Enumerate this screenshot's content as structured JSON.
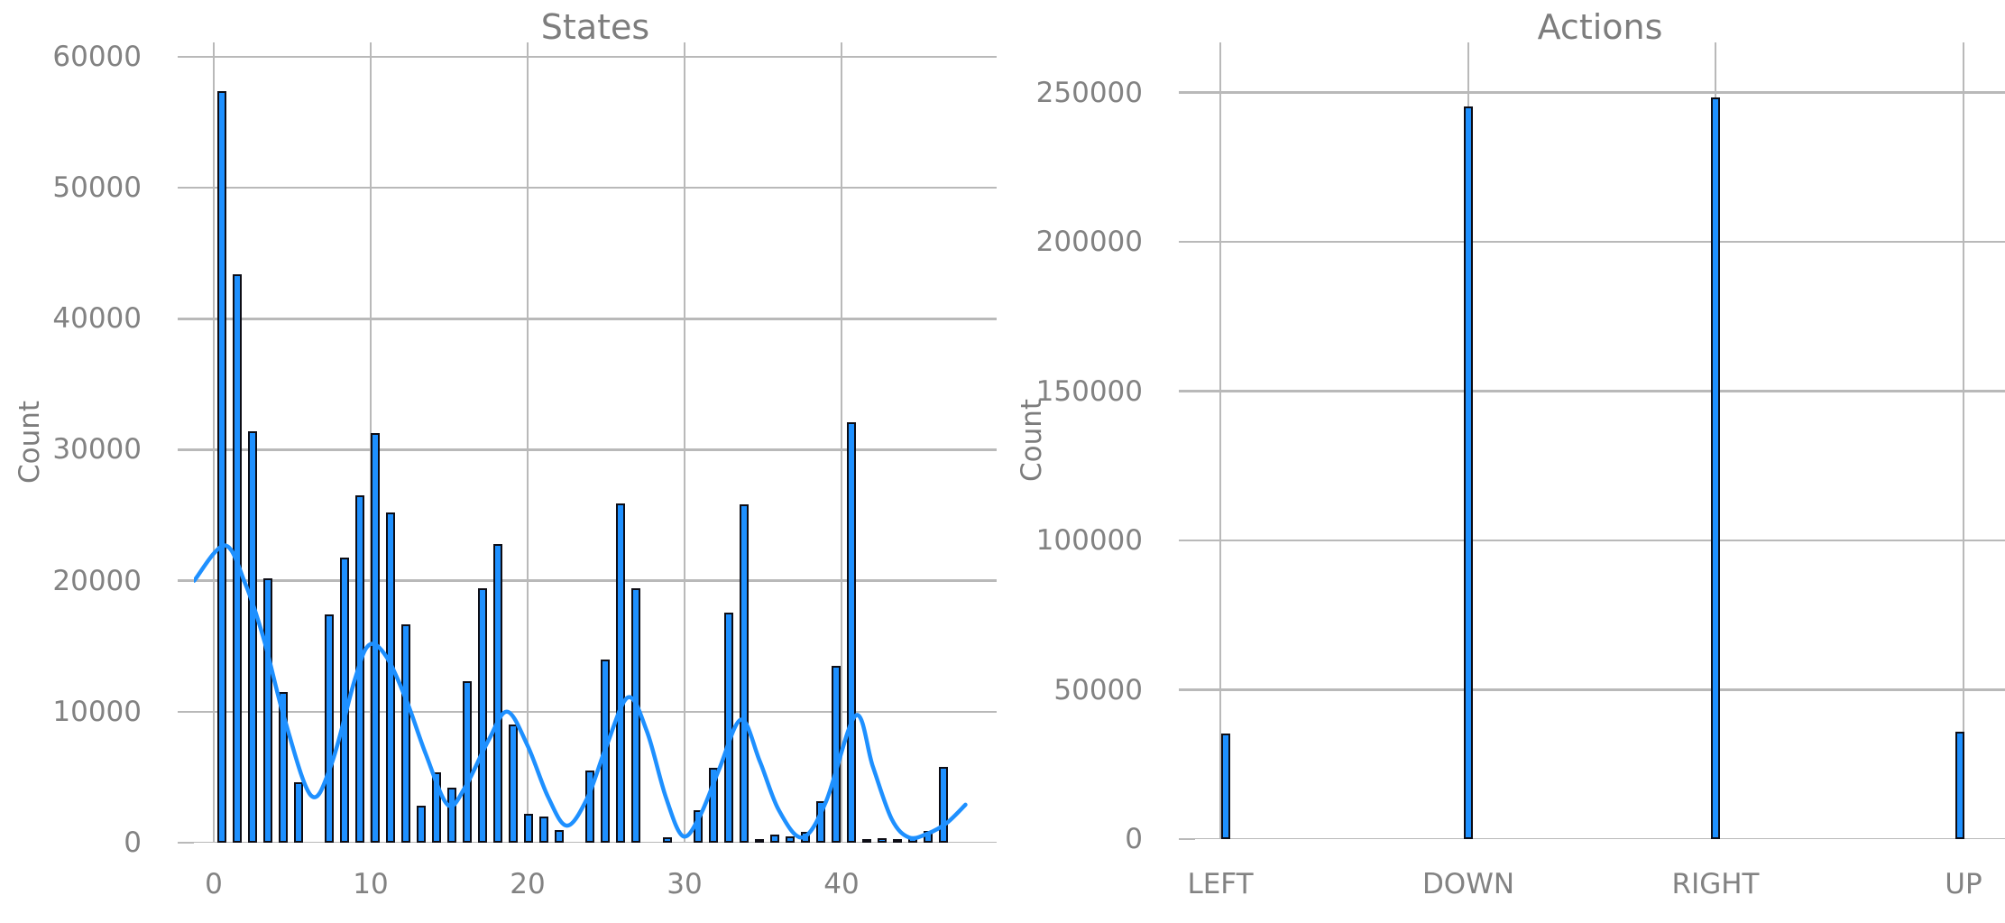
{
  "figure": {
    "background": "#ffffff",
    "bar_fill": "#1E90FF",
    "bar_edge": "#0d0d15",
    "kde_color": "#1E90FF",
    "grid_color": "#b9b9b9",
    "text_color": "#7d7d7d"
  },
  "chart_data": [
    {
      "type": "bar",
      "subtype": "histogram_with_kde",
      "title": "States",
      "ylabel": "Count",
      "legend_position": "none",
      "grid": true,
      "x_tick_labels": [
        "0",
        "10",
        "20",
        "30",
        "40"
      ],
      "x_tick_values": [
        0,
        10,
        20,
        30,
        40
      ],
      "y_tick_labels": [
        "0",
        "10000",
        "20000",
        "30000",
        "40000",
        "50000",
        "60000"
      ],
      "y_tick_values": [
        0,
        10000,
        20000,
        30000,
        40000,
        50000,
        60000
      ],
      "xlim": [
        -1.26,
        49.9
      ],
      "ylim": [
        0,
        61100
      ],
      "bins": 48,
      "bin_start": 0,
      "bin_width": 0.979,
      "values": [
        57400,
        43400,
        31400,
        20200,
        11500,
        4600,
        0,
        17400,
        21800,
        26500,
        31300,
        25200,
        16700,
        2800,
        5400,
        4200,
        12300,
        19400,
        22800,
        9000,
        2200,
        2000,
        950,
        0,
        5500,
        14000,
        25900,
        19400,
        0,
        400,
        0,
        2450,
        5700,
        17600,
        25800,
        300,
        650,
        500,
        800,
        3200,
        13500,
        32100,
        300,
        350,
        250,
        400,
        900,
        5800
      ],
      "kde_points": [
        [
          -1.25,
          20000
        ],
        [
          0.7,
          22700
        ],
        [
          2,
          19800
        ],
        [
          3.2,
          15500
        ],
        [
          4.5,
          9500
        ],
        [
          6.2,
          3600
        ],
        [
          7.5,
          6000
        ],
        [
          9,
          12500
        ],
        [
          9.9,
          15100
        ],
        [
          11,
          14200
        ],
        [
          12.3,
          10800
        ],
        [
          13.5,
          6800
        ],
        [
          14.9,
          2900
        ],
        [
          16,
          4200
        ],
        [
          17.5,
          7800
        ],
        [
          18.7,
          10000
        ],
        [
          20,
          7400
        ],
        [
          21.3,
          3500
        ],
        [
          22.5,
          1300
        ],
        [
          23.8,
          3400
        ],
        [
          25,
          7300
        ],
        [
          26.4,
          11100
        ],
        [
          27.6,
          8500
        ],
        [
          28.8,
          3500
        ],
        [
          29.9,
          500
        ],
        [
          31,
          2100
        ],
        [
          32.2,
          5600
        ],
        [
          33.6,
          9400
        ],
        [
          34.8,
          6200
        ],
        [
          36,
          2500
        ],
        [
          37.5,
          400
        ],
        [
          39,
          3100
        ],
        [
          40.9,
          9700
        ],
        [
          42,
          5800
        ],
        [
          43.2,
          1800
        ],
        [
          44.3,
          400
        ],
        [
          45.5,
          700
        ],
        [
          46.7,
          1500
        ],
        [
          47.9,
          2900
        ]
      ]
    },
    {
      "type": "bar",
      "subtype": "categorical_histogram",
      "title": "Actions",
      "ylabel": "Count",
      "legend_position": "none",
      "grid": true,
      "categories": [
        "LEFT",
        "DOWN",
        "RIGHT",
        "UP"
      ],
      "values": [
        35500,
        245500,
        248500,
        36000
      ],
      "y_tick_labels": [
        "0",
        "50000",
        "100000",
        "150000",
        "200000",
        "250000"
      ],
      "y_tick_values": [
        0,
        50000,
        100000,
        150000,
        200000,
        250000
      ],
      "ylim": [
        0,
        266900
      ]
    }
  ]
}
